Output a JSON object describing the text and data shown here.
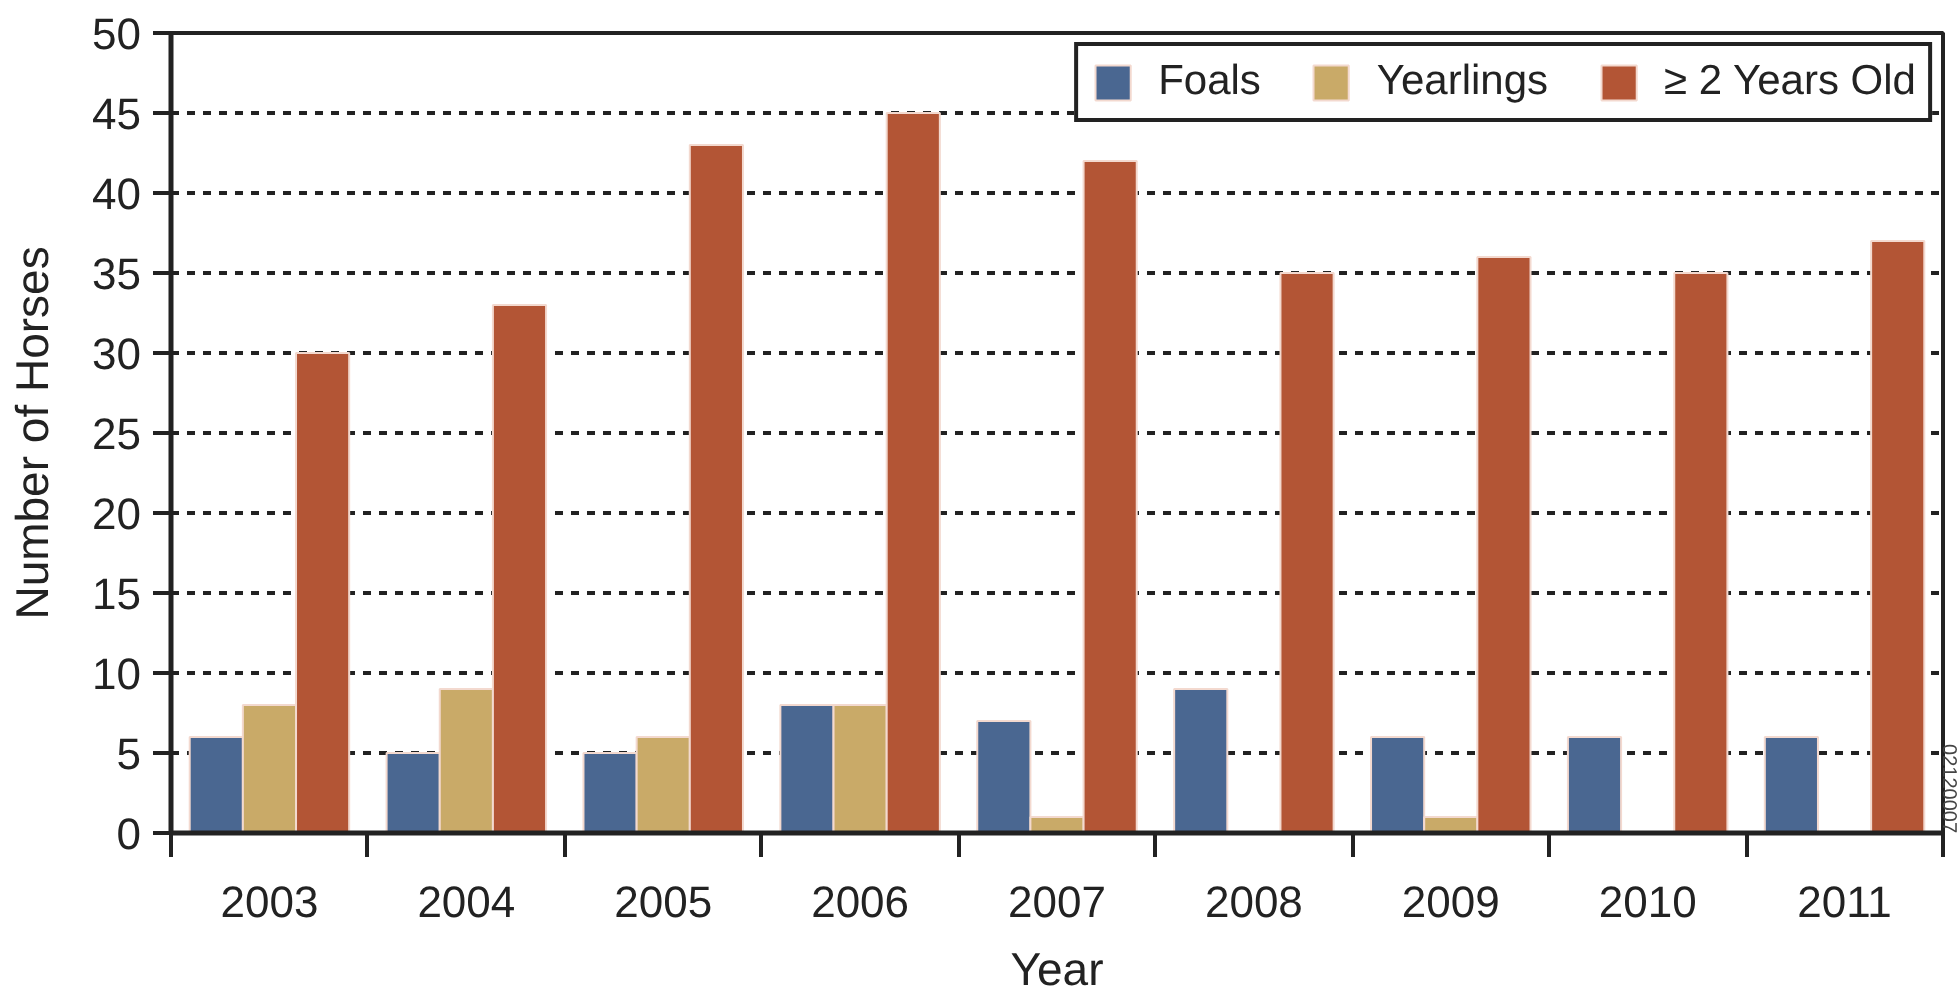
{
  "chart_data": {
    "type": "bar",
    "xlabel": "Year",
    "ylabel": "Number of Horses",
    "categories": [
      "2003",
      "2004",
      "2005",
      "2006",
      "2007",
      "2008",
      "2009",
      "2010",
      "2011"
    ],
    "series": [
      {
        "name": "Foals",
        "color": "#4a6791",
        "values": [
          6,
          5,
          5,
          8,
          7,
          9,
          6,
          6,
          6
        ]
      },
      {
        "name": "Yearlings",
        "color": "#c9aa68",
        "values": [
          8,
          9,
          6,
          8,
          1,
          null,
          1,
          null,
          null
        ]
      },
      {
        "name": "≥ 2 Years Old",
        "color": "#b35535",
        "values": [
          30,
          33,
          43,
          45,
          42,
          35,
          36,
          35,
          37
        ]
      }
    ],
    "ylim": [
      0,
      50
    ],
    "yticks": [
      0,
      5,
      10,
      15,
      20,
      25,
      30,
      35,
      40,
      45,
      50
    ],
    "grid": "y",
    "legend": "top right",
    "annotations": [
      "02120007"
    ]
  }
}
